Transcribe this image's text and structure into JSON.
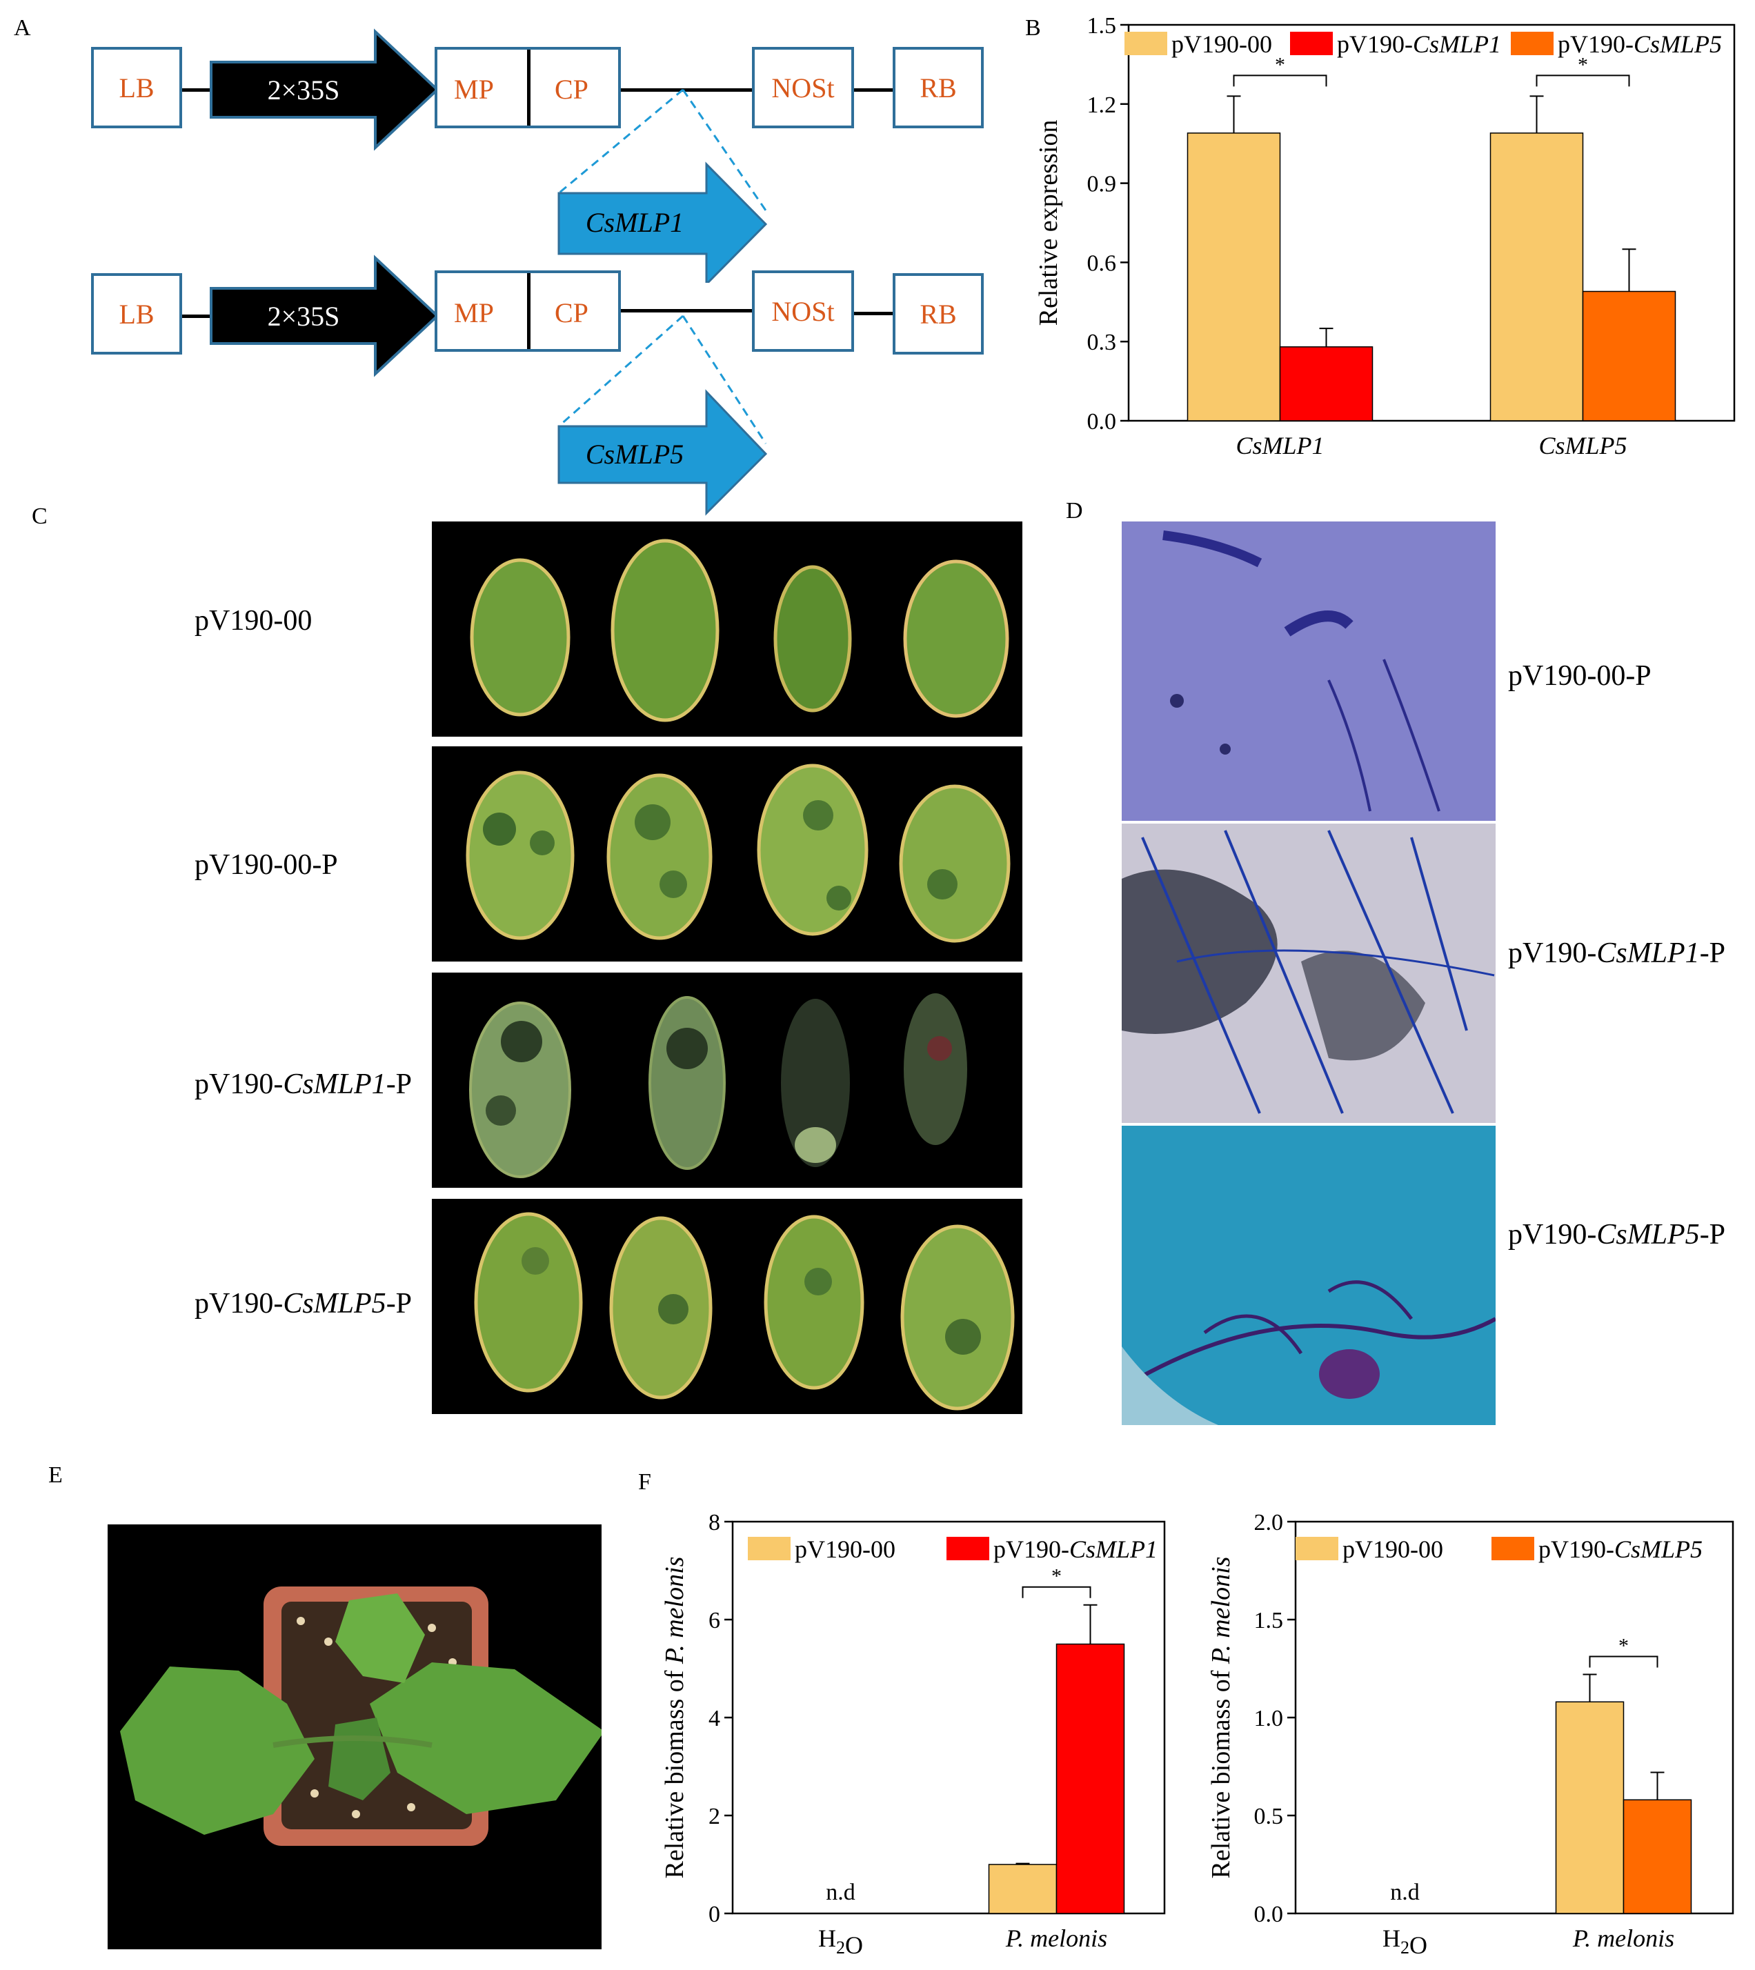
{
  "panels": {
    "A": "A",
    "B": "B",
    "C": "C",
    "D": "D",
    "E": "E",
    "F": "F"
  },
  "panelA": {
    "construct1": {
      "lb": "LB",
      "promoter": "2×35S",
      "mp": "MP",
      "cp": "CP",
      "nos": "NOSt",
      "rb": "RB",
      "insert": "CsMLP1"
    },
    "construct2": {
      "lb": "LB",
      "promoter": "2×35S",
      "mp": "MP",
      "cp": "CP",
      "nos": "NOSt",
      "rb": "RB",
      "insert": "CsMLP5"
    }
  },
  "panelC": {
    "rows": [
      {
        "pre": "pV190-00",
        "gene": "",
        "post": ""
      },
      {
        "pre": "pV190-00-P",
        "gene": "",
        "post": ""
      },
      {
        "pre": "pV190-",
        "gene": "CsMLP1",
        "post": "-P"
      },
      {
        "pre": "pV190-",
        "gene": "CsMLP5",
        "post": "-P"
      }
    ]
  },
  "panelD": {
    "rows": [
      {
        "pre": "pV190-00-P",
        "gene": "",
        "post": ""
      },
      {
        "pre": "pV190-",
        "gene": "CsMLP1",
        "post": "-P"
      },
      {
        "pre": "pV190-",
        "gene": "CsMLP5",
        "post": "-P"
      }
    ]
  },
  "colors": {
    "control": "#f9c96b",
    "mlp1": "#ff0000",
    "mlp5": "#ff6a00",
    "box_border": "#2f6f9a",
    "box_text": "#d8581b",
    "insert_arrow": "#1e9ad6"
  },
  "chart_data": [
    {
      "id": "B",
      "type": "bar",
      "ylabel": "Relative expression",
      "ylim": [
        0,
        1.5
      ],
      "yticks": [
        "0.0",
        "0.3",
        "0.6",
        "0.9",
        "1.2",
        "1.5"
      ],
      "categories": [
        "CsMLP1",
        "CsMLP5"
      ],
      "legend": [
        {
          "text": "pV190-00",
          "gene": ""
        },
        {
          "text": "pV190-",
          "gene": "CsMLP1"
        },
        {
          "text": "pV190-",
          "gene": "CsMLP5"
        }
      ],
      "bars": [
        {
          "category": "CsMLP1",
          "series": "pV190-00",
          "value": 1.09,
          "err": 0.14
        },
        {
          "category": "CsMLP1",
          "series": "pV190-CsMLP1",
          "value": 0.28,
          "err": 0.07
        },
        {
          "category": "CsMLP5",
          "series": "pV190-00",
          "value": 1.09,
          "err": 0.14
        },
        {
          "category": "CsMLP5",
          "series": "pV190-CsMLP5",
          "value": 0.49,
          "err": 0.16
        }
      ],
      "significance": [
        "*",
        "*"
      ]
    },
    {
      "id": "F1",
      "type": "bar",
      "ylabel_pre": "Relative biomass of ",
      "ylabel_it": "P. melonis",
      "ylim": [
        0,
        8
      ],
      "yticks": [
        "0",
        "2",
        "4",
        "6",
        "8"
      ],
      "categories": [
        "H2O",
        "P. melonis"
      ],
      "legend": [
        {
          "text": "pV190-00",
          "gene": ""
        },
        {
          "text": "pV190-",
          "gene": "CsMLP1"
        }
      ],
      "bars": [
        {
          "category": "P. melonis",
          "series": "pV190-00",
          "value": 1.0,
          "err": 0.02
        },
        {
          "category": "P. melonis",
          "series": "pV190-CsMLP1",
          "value": 5.5,
          "err": 0.8
        }
      ],
      "nd": "n.d",
      "significance": [
        "*"
      ]
    },
    {
      "id": "F2",
      "type": "bar",
      "ylabel_pre": "Relative biomass of ",
      "ylabel_it": "P. melonis",
      "ylim": [
        0,
        2.0
      ],
      "yticks": [
        "0.0",
        "0.5",
        "1.0",
        "1.5",
        "2.0"
      ],
      "categories": [
        "H2O",
        "P. melonis"
      ],
      "legend": [
        {
          "text": "pV190-00",
          "gene": ""
        },
        {
          "text": "pV190-",
          "gene": "CsMLP5"
        }
      ],
      "bars": [
        {
          "category": "P. melonis",
          "series": "pV190-00",
          "value": 1.08,
          "err": 0.14
        },
        {
          "category": "P. melonis",
          "series": "pV190-CsMLP5",
          "value": 0.58,
          "err": 0.14
        }
      ],
      "nd": "n.d",
      "significance": [
        "*"
      ]
    }
  ]
}
